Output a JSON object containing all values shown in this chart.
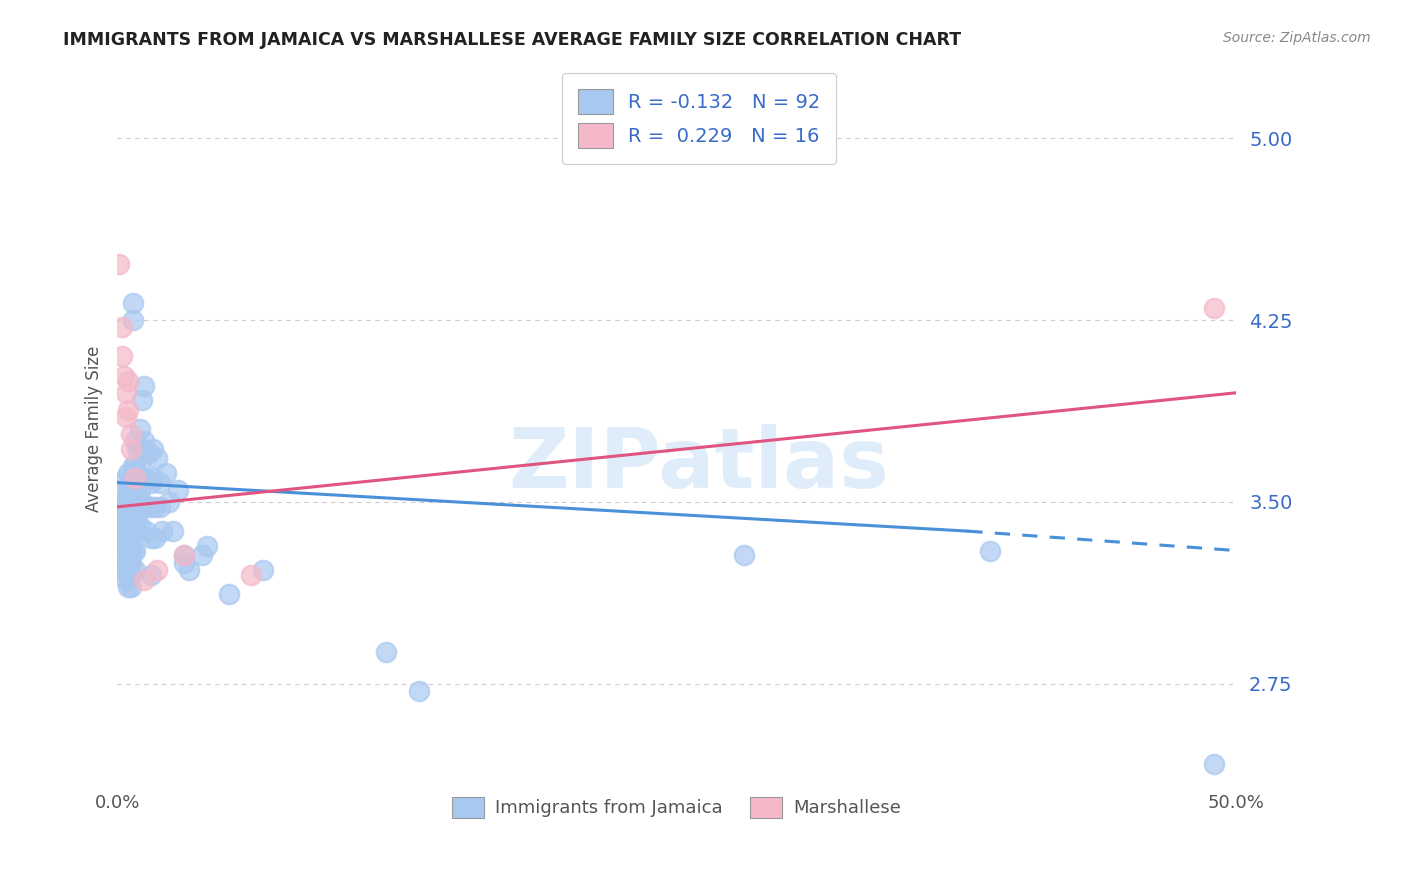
{
  "title": "IMMIGRANTS FROM JAMAICA VS MARSHALLESE AVERAGE FAMILY SIZE CORRELATION CHART",
  "source": "Source: ZipAtlas.com",
  "ylabel": "Average Family Size",
  "yticks": [
    2.75,
    3.5,
    4.25,
    5.0
  ],
  "xlim": [
    0.0,
    0.5
  ],
  "ylim": [
    2.35,
    5.25
  ],
  "background_color": "#ffffff",
  "grid_color": "#cccccc",
  "jamaica_color": "#a8c8f0",
  "marshallese_color": "#f4b8c8",
  "jamaica_line_color": "#4a90d9",
  "marshallese_line_color": "#e05580",
  "watermark": "ZIPatlas",
  "jamaica_scatter": [
    [
      0.001,
      3.42
    ],
    [
      0.002,
      3.38
    ],
    [
      0.002,
      3.55
    ],
    [
      0.002,
      3.35
    ],
    [
      0.003,
      3.32
    ],
    [
      0.003,
      3.48
    ],
    [
      0.003,
      3.45
    ],
    [
      0.003,
      3.4
    ],
    [
      0.003,
      3.3
    ],
    [
      0.003,
      3.25
    ],
    [
      0.004,
      3.6
    ],
    [
      0.004,
      3.52
    ],
    [
      0.004,
      3.48
    ],
    [
      0.004,
      3.42
    ],
    [
      0.004,
      3.38
    ],
    [
      0.004,
      3.35
    ],
    [
      0.004,
      3.3
    ],
    [
      0.004,
      3.25
    ],
    [
      0.004,
      3.22
    ],
    [
      0.004,
      3.18
    ],
    [
      0.005,
      3.62
    ],
    [
      0.005,
      3.55
    ],
    [
      0.005,
      3.5
    ],
    [
      0.005,
      3.45
    ],
    [
      0.005,
      3.4
    ],
    [
      0.005,
      3.35
    ],
    [
      0.005,
      3.3
    ],
    [
      0.005,
      3.25
    ],
    [
      0.005,
      3.2
    ],
    [
      0.005,
      3.15
    ],
    [
      0.006,
      3.58
    ],
    [
      0.006,
      3.52
    ],
    [
      0.006,
      3.48
    ],
    [
      0.006,
      3.42
    ],
    [
      0.006,
      3.38
    ],
    [
      0.006,
      3.35
    ],
    [
      0.006,
      3.3
    ],
    [
      0.006,
      3.25
    ],
    [
      0.006,
      3.2
    ],
    [
      0.006,
      3.15
    ],
    [
      0.007,
      3.65
    ],
    [
      0.007,
      3.55
    ],
    [
      0.007,
      3.5
    ],
    [
      0.007,
      3.45
    ],
    [
      0.007,
      3.38
    ],
    [
      0.007,
      3.3
    ],
    [
      0.007,
      4.32
    ],
    [
      0.007,
      4.25
    ],
    [
      0.008,
      3.75
    ],
    [
      0.008,
      3.65
    ],
    [
      0.008,
      3.58
    ],
    [
      0.008,
      3.5
    ],
    [
      0.008,
      3.4
    ],
    [
      0.008,
      3.3
    ],
    [
      0.008,
      3.22
    ],
    [
      0.009,
      3.72
    ],
    [
      0.009,
      3.6
    ],
    [
      0.009,
      3.52
    ],
    [
      0.009,
      3.45
    ],
    [
      0.009,
      3.38
    ],
    [
      0.01,
      3.8
    ],
    [
      0.01,
      3.65
    ],
    [
      0.01,
      3.55
    ],
    [
      0.01,
      3.48
    ],
    [
      0.01,
      3.4
    ],
    [
      0.011,
      3.92
    ],
    [
      0.011,
      3.72
    ],
    [
      0.011,
      3.6
    ],
    [
      0.011,
      3.5
    ],
    [
      0.012,
      3.98
    ],
    [
      0.012,
      3.75
    ],
    [
      0.013,
      3.6
    ],
    [
      0.013,
      3.48
    ],
    [
      0.013,
      3.38
    ],
    [
      0.014,
      3.7
    ],
    [
      0.015,
      3.58
    ],
    [
      0.015,
      3.48
    ],
    [
      0.015,
      3.35
    ],
    [
      0.015,
      3.2
    ],
    [
      0.016,
      3.72
    ],
    [
      0.016,
      3.6
    ],
    [
      0.017,
      3.48
    ],
    [
      0.017,
      3.35
    ],
    [
      0.018,
      3.68
    ],
    [
      0.019,
      3.58
    ],
    [
      0.019,
      3.48
    ],
    [
      0.02,
      3.38
    ],
    [
      0.022,
      3.62
    ],
    [
      0.023,
      3.5
    ],
    [
      0.025,
      3.38
    ],
    [
      0.027,
      3.55
    ],
    [
      0.03,
      3.28
    ],
    [
      0.03,
      3.25
    ],
    [
      0.032,
      3.22
    ],
    [
      0.038,
      3.28
    ],
    [
      0.04,
      3.32
    ],
    [
      0.05,
      3.12
    ],
    [
      0.065,
      3.22
    ],
    [
      0.12,
      2.88
    ],
    [
      0.135,
      2.72
    ],
    [
      0.28,
      3.28
    ],
    [
      0.39,
      3.3
    ],
    [
      0.49,
      2.42
    ]
  ],
  "marshallese_scatter": [
    [
      0.001,
      4.48
    ],
    [
      0.002,
      4.22
    ],
    [
      0.002,
      4.1
    ],
    [
      0.003,
      4.02
    ],
    [
      0.004,
      3.95
    ],
    [
      0.004,
      3.85
    ],
    [
      0.005,
      4.0
    ],
    [
      0.005,
      3.88
    ],
    [
      0.006,
      3.78
    ],
    [
      0.006,
      3.72
    ],
    [
      0.008,
      3.6
    ],
    [
      0.012,
      3.18
    ],
    [
      0.018,
      3.22
    ],
    [
      0.03,
      3.28
    ],
    [
      0.06,
      3.2
    ],
    [
      0.49,
      4.3
    ]
  ],
  "jamaica_trendline_solid": [
    [
      0.0,
      3.58
    ],
    [
      0.38,
      3.38
    ]
  ],
  "jamaica_trendline_dash": [
    [
      0.38,
      3.38
    ],
    [
      0.5,
      3.3
    ]
  ],
  "marshallese_trendline": [
    [
      0.0,
      3.48
    ],
    [
      0.5,
      3.95
    ]
  ]
}
